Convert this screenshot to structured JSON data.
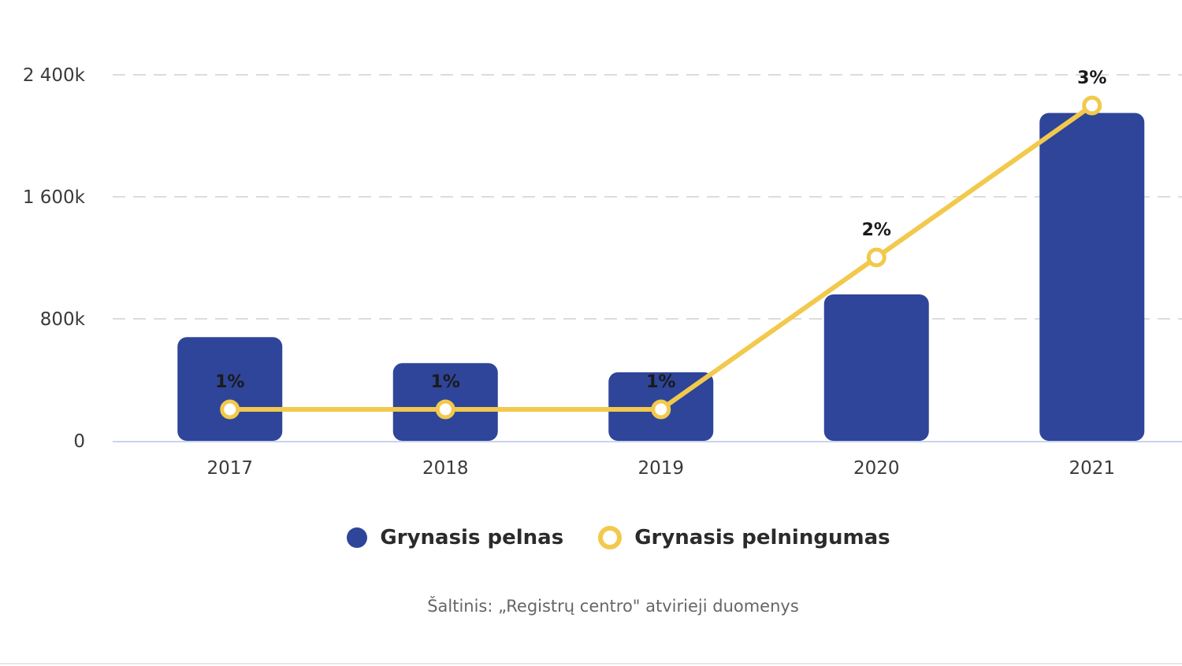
{
  "chart_data": {
    "type": "bar",
    "categories": [
      "2017",
      "2018",
      "2019",
      "2020",
      "2021"
    ],
    "series": [
      {
        "name": "Grynasis pelnas",
        "type": "bar",
        "values": [
          680,
          510,
          450,
          960,
          2150
        ],
        "color": "#2e4599"
      },
      {
        "name": "Grynasis pelningumas",
        "type": "line",
        "values": [
          1,
          1,
          1,
          2,
          3
        ],
        "labels": [
          "1%",
          "1%",
          "1%",
          "2%",
          "3%"
        ],
        "color": "#f2c94c"
      }
    ],
    "y_axis": {
      "ticks": [
        0,
        800,
        1600,
        2400
      ],
      "tick_labels": [
        "0",
        "800k",
        "1 600k",
        "2 400k"
      ],
      "ylim": [
        0,
        2400
      ]
    },
    "y2_axis": {
      "hidden": true,
      "ylim": [
        0,
        4
      ],
      "note_values": "line drawn against a hidden secondary axis"
    },
    "grid": "horizontal dashed",
    "legend_position": "bottom"
  },
  "legend": {
    "bar_label": "Grynasis pelnas",
    "line_label": "Grynasis pelningumas"
  },
  "source_text": "Šaltinis: „Registrų centro\" atvirieji duomenys"
}
